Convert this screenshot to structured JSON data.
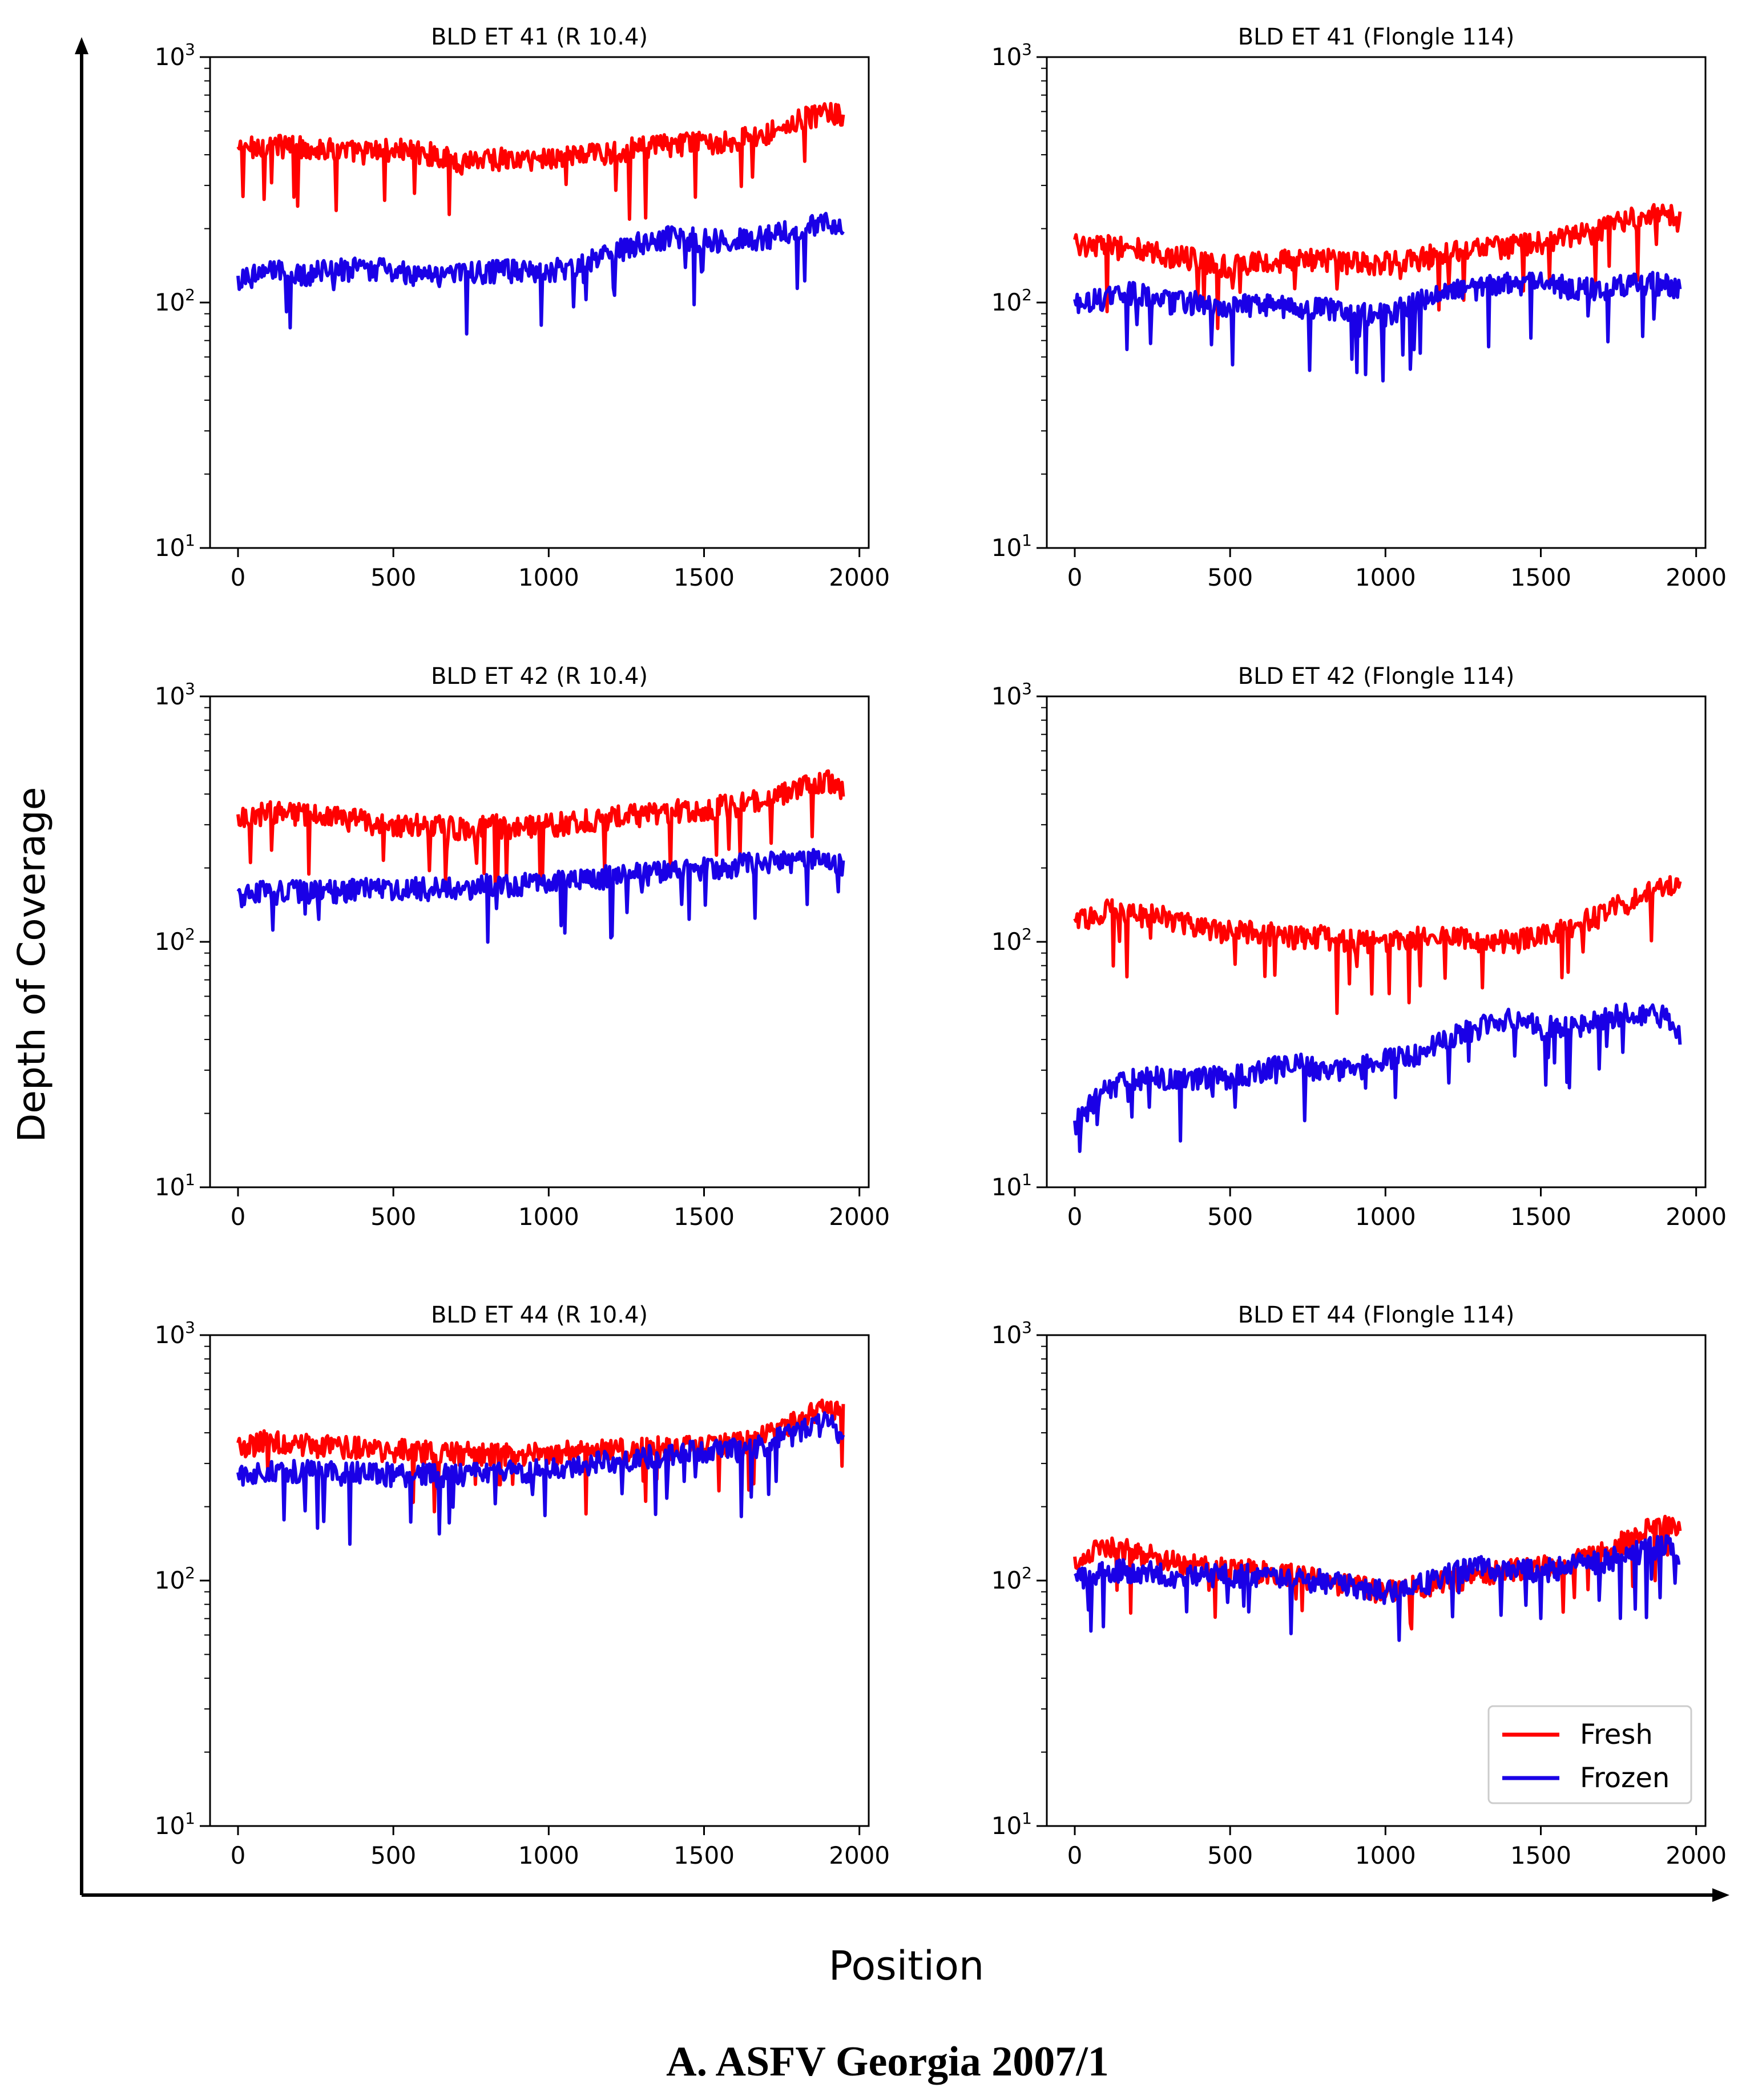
{
  "figure": {
    "y_axis_label": "Depth of Coverage",
    "x_axis_label": "Position",
    "caption": "A. ASFV Georgia 2007/1"
  },
  "legend": {
    "placement": "lower-right of panel BLD ET 44 (Flongle 114)",
    "entries": [
      {
        "name": "Fresh",
        "color": "#ff0000"
      },
      {
        "name": "Frozen",
        "color": "#1a00e6"
      }
    ]
  },
  "chart_data": [
    {
      "type": "line",
      "title": "BLD ET 41 (R 10.4)",
      "yscale": "log",
      "ylim": [
        10,
        1000
      ],
      "xlim": [
        -90,
        2030
      ],
      "xticks": [
        "0",
        "500",
        "1000",
        "1500",
        "2000"
      ],
      "yticks": [
        "10^1",
        "10^2",
        "10^3"
      ],
      "x": [
        0,
        100,
        200,
        300,
        400,
        500,
        600,
        700,
        800,
        900,
        1000,
        1100,
        1200,
        1300,
        1400,
        1500,
        1600,
        1700,
        1800,
        1900,
        1950
      ],
      "series": [
        {
          "name": "Fresh",
          "color": "#ff0000",
          "values": [
            420,
            440,
            430,
            420,
            410,
            420,
            410,
            380,
            390,
            380,
            390,
            400,
            410,
            430,
            440,
            450,
            460,
            490,
            550,
            600,
            570
          ]
        },
        {
          "name": "Frozen",
          "color": "#1a00e6",
          "values": [
            125,
            135,
            130,
            135,
            138,
            135,
            130,
            130,
            135,
            135,
            135,
            140,
            160,
            175,
            185,
            180,
            180,
            185,
            200,
            210,
            190
          ]
        }
      ]
    },
    {
      "type": "line",
      "title": "BLD ET 41 (Flongle 114)",
      "yscale": "log",
      "ylim": [
        10,
        1000
      ],
      "xlim": [
        -90,
        2030
      ],
      "xticks": [
        "0",
        "500",
        "1000",
        "1500",
        "2000"
      ],
      "yticks": [
        "10^1",
        "10^2",
        "10^3"
      ],
      "x": [
        0,
        100,
        200,
        300,
        400,
        500,
        600,
        700,
        800,
        900,
        1000,
        1100,
        1200,
        1300,
        1400,
        1500,
        1600,
        1700,
        1800,
        1900,
        1950
      ],
      "series": [
        {
          "name": "Fresh",
          "color": "#ff0000",
          "values": [
            175,
            170,
            165,
            155,
            150,
            140,
            145,
            150,
            150,
            145,
            145,
            150,
            160,
            165,
            170,
            175,
            185,
            200,
            220,
            230,
            215
          ]
        },
        {
          "name": "Frozen",
          "color": "#1a00e6",
          "values": [
            100,
            105,
            110,
            100,
            100,
            95,
            100,
            95,
            95,
            90,
            90,
            100,
            110,
            115,
            120,
            120,
            115,
            115,
            120,
            120,
            115
          ]
        }
      ]
    },
    {
      "type": "line",
      "title": "BLD ET 42 (R 10.4)",
      "yscale": "log",
      "ylim": [
        10,
        1000
      ],
      "xlim": [
        -90,
        2030
      ],
      "xticks": [
        "0",
        "500",
        "1000",
        "1500",
        "2000"
      ],
      "yticks": [
        "10^1",
        "10^2",
        "10^3"
      ],
      "x": [
        0,
        100,
        200,
        300,
        400,
        500,
        600,
        700,
        800,
        900,
        1000,
        1100,
        1200,
        1300,
        1400,
        1500,
        1600,
        1700,
        1800,
        1900,
        1950
      ],
      "series": [
        {
          "name": "Fresh",
          "color": "#ff0000",
          "values": [
            320,
            340,
            330,
            320,
            310,
            300,
            300,
            290,
            300,
            290,
            300,
            310,
            320,
            330,
            340,
            350,
            360,
            380,
            420,
            450,
            400
          ]
        },
        {
          "name": "Frozen",
          "color": "#1a00e6",
          "values": [
            155,
            160,
            160,
            160,
            165,
            165,
            165,
            165,
            170,
            170,
            175,
            180,
            185,
            190,
            195,
            200,
            205,
            210,
            215,
            220,
            200
          ]
        }
      ]
    },
    {
      "type": "line",
      "title": "BLD ET 42 (Flongle 114)",
      "yscale": "log",
      "ylim": [
        10,
        1000
      ],
      "xlim": [
        -90,
        2030
      ],
      "xticks": [
        "0",
        "500",
        "1000",
        "1500",
        "2000"
      ],
      "yticks": [
        "10^1",
        "10^2",
        "10^3"
      ],
      "x": [
        0,
        100,
        200,
        300,
        400,
        500,
        600,
        700,
        800,
        900,
        1000,
        1100,
        1200,
        1300,
        1400,
        1500,
        1600,
        1700,
        1800,
        1900,
        1950
      ],
      "series": [
        {
          "name": "Fresh",
          "color": "#ff0000",
          "values": [
            120,
            135,
            130,
            125,
            115,
            110,
            110,
            105,
            105,
            100,
            100,
            105,
            105,
            100,
            100,
            105,
            115,
            130,
            150,
            175,
            165
          ]
        },
        {
          "name": "Frozen",
          "color": "#1a00e6",
          "values": [
            18,
            25,
            28,
            28,
            28,
            28,
            30,
            32,
            30,
            30,
            33,
            35,
            40,
            45,
            48,
            45,
            45,
            48,
            52,
            50,
            40
          ]
        }
      ]
    },
    {
      "type": "line",
      "title": "BLD ET 44 (R 10.4)",
      "yscale": "log",
      "ylim": [
        10,
        1000
      ],
      "xlim": [
        -90,
        2030
      ],
      "xticks": [
        "0",
        "500",
        "1000",
        "1500",
        "2000"
      ],
      "yticks": [
        "10^1",
        "10^2",
        "10^3"
      ],
      "x": [
        0,
        100,
        200,
        300,
        400,
        500,
        600,
        700,
        800,
        900,
        1000,
        1100,
        1200,
        1300,
        1400,
        1500,
        1600,
        1700,
        1800,
        1900,
        1950
      ],
      "series": [
        {
          "name": "Fresh",
          "color": "#ff0000",
          "values": [
            350,
            370,
            360,
            350,
            345,
            340,
            335,
            330,
            330,
            330,
            330,
            335,
            340,
            345,
            350,
            355,
            360,
            390,
            450,
            520,
            480
          ]
        },
        {
          "name": "Frozen",
          "color": "#1a00e6",
          "values": [
            265,
            285,
            280,
            275,
            275,
            270,
            270,
            270,
            275,
            280,
            285,
            295,
            305,
            320,
            330,
            335,
            340,
            360,
            400,
            440,
            380
          ]
        }
      ]
    },
    {
      "type": "line",
      "title": "BLD ET 44 (Flongle 114)",
      "yscale": "log",
      "ylim": [
        10,
        1000
      ],
      "xlim": [
        -90,
        2030
      ],
      "xticks": [
        "0",
        "500",
        "1000",
        "1500",
        "2000"
      ],
      "yticks": [
        "10^1",
        "10^2",
        "10^3"
      ],
      "x": [
        0,
        100,
        200,
        300,
        400,
        500,
        600,
        700,
        800,
        900,
        1000,
        1100,
        1200,
        1300,
        1400,
        1500,
        1600,
        1700,
        1800,
        1900,
        1950
      ],
      "series": [
        {
          "name": "Fresh",
          "color": "#ff0000",
          "values": [
            120,
            140,
            130,
            120,
            115,
            110,
            110,
            105,
            100,
            95,
            90,
            95,
            100,
            105,
            110,
            115,
            120,
            130,
            150,
            180,
            165
          ]
        },
        {
          "name": "Frozen",
          "color": "#1a00e6",
          "values": [
            100,
            110,
            110,
            105,
            105,
            105,
            105,
            100,
            100,
            95,
            90,
            95,
            105,
            115,
            110,
            110,
            115,
            120,
            130,
            140,
            130
          ]
        }
      ]
    }
  ]
}
